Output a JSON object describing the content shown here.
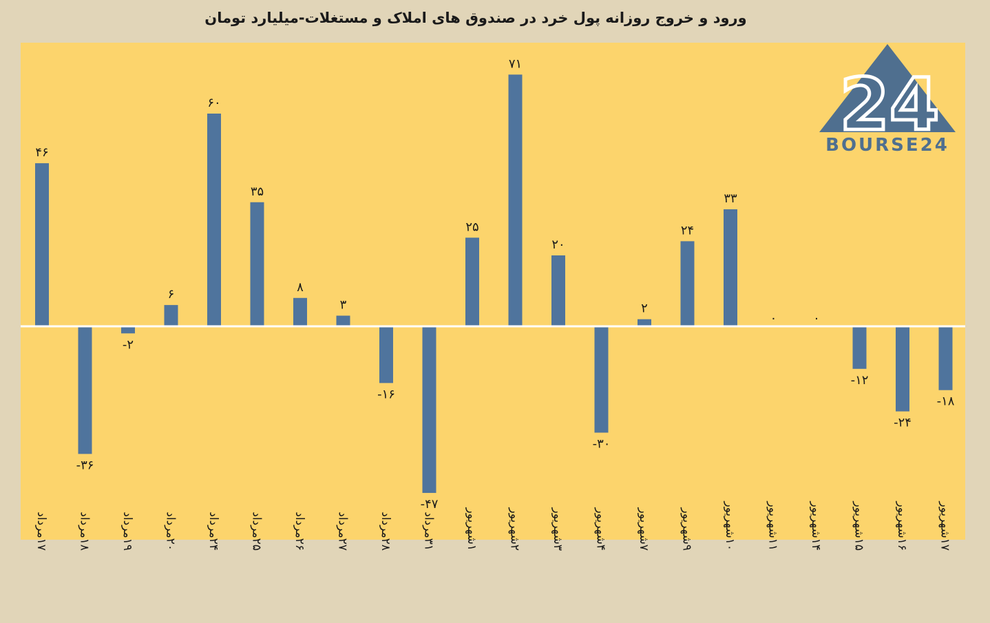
{
  "title": "ورود و خروج روزانه پول خرد در صندوق های املاک و مستغلات-میلیارد تومان",
  "logo": {
    "text": "BOURSE24",
    "emblem": "24"
  },
  "colors": {
    "plot_bg": "#fcd46c",
    "page_bg": "#e1d5b8",
    "bar": "#4f749d",
    "zero_line": "#ffffff"
  },
  "chart_data": {
    "type": "bar",
    "title": "ورود و خروج روزانه پول خرد در صندوق های املاک و مستغلات-میلیارد تومان",
    "categories": [
      "۱۷مرداد",
      "۱۸مرداد",
      "۱۹مرداد",
      "۲۰مرداد",
      "۲۴مرداد",
      "۲۵مرداد",
      "۲۶مرداد",
      "۲۷مرداد",
      "۲۸مرداد",
      "۳۱مرداد",
      "۱شهریور",
      "۲شهریور",
      "۳شهریور",
      "۴شهریور",
      "۷شهریور",
      "۹شهریور",
      "۱۰شهریور",
      "۱۱شهریور",
      "۱۴شهریور",
      "۱۵شهریور",
      "۱۶شهریور",
      "۱۷شهریور"
    ],
    "values": [
      46,
      -36,
      -2,
      6,
      60,
      35,
      8,
      3,
      -16,
      -47,
      25,
      71,
      20,
      -30,
      2,
      24,
      33,
      0,
      0,
      -12,
      -24,
      -18
    ],
    "value_labels": [
      "۴۶",
      "-۳۶",
      "-۲",
      "۶",
      "۶۰",
      "۳۵",
      "۸",
      "۳",
      "-۱۶",
      "-۴۷",
      "۲۵",
      "۷۱",
      "۲۰",
      "-۳۰",
      "۲",
      "۲۴",
      "۳۳",
      "۰",
      "۰",
      "-۱۲",
      "-۲۴",
      "-۱۸"
    ],
    "xlabel": "",
    "ylabel": "",
    "ylim": [
      -60,
      80
    ],
    "grid": false,
    "legend": "none"
  }
}
